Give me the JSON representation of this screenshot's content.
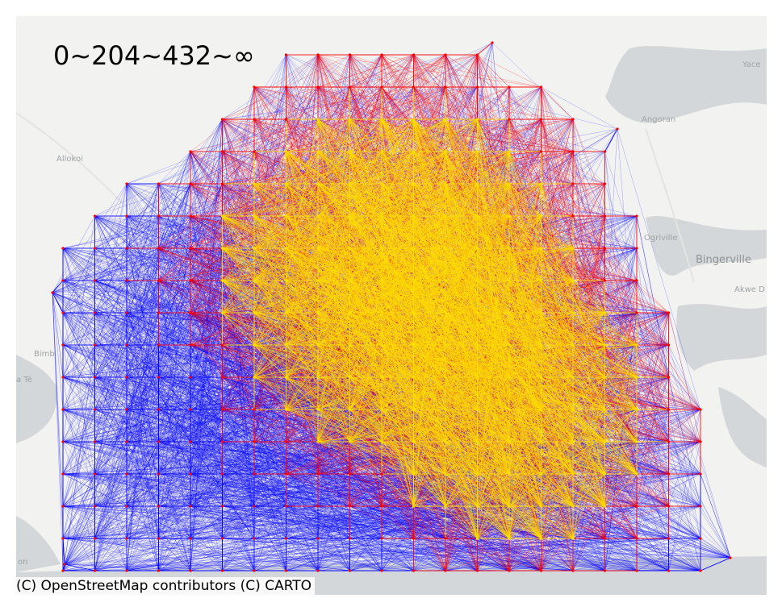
{
  "map": {
    "legend_title": "0~204~432~∞",
    "attribution": "(C) OpenStreetMap contributors (C) CARTO",
    "colors": {
      "land": "#f2f3f1",
      "water": "#d4d7d9",
      "low": "#0000ff",
      "mid": "#ff0000",
      "high": "#ffdd00"
    },
    "place_labels": [
      {
        "name": "Yace",
        "size": "small"
      },
      {
        "name": "Angoran",
        "size": "small"
      },
      {
        "name": "Allokoi",
        "size": "small"
      },
      {
        "name": "Ogriville",
        "size": "small"
      },
      {
        "name": "Bingerville",
        "size": "big"
      },
      {
        "name": "Akwe D",
        "size": "small"
      },
      {
        "name": "Bimb",
        "size": "small"
      },
      {
        "name": "a Té",
        "size": "small"
      },
      {
        "name": "on",
        "size": "small"
      }
    ]
  }
}
